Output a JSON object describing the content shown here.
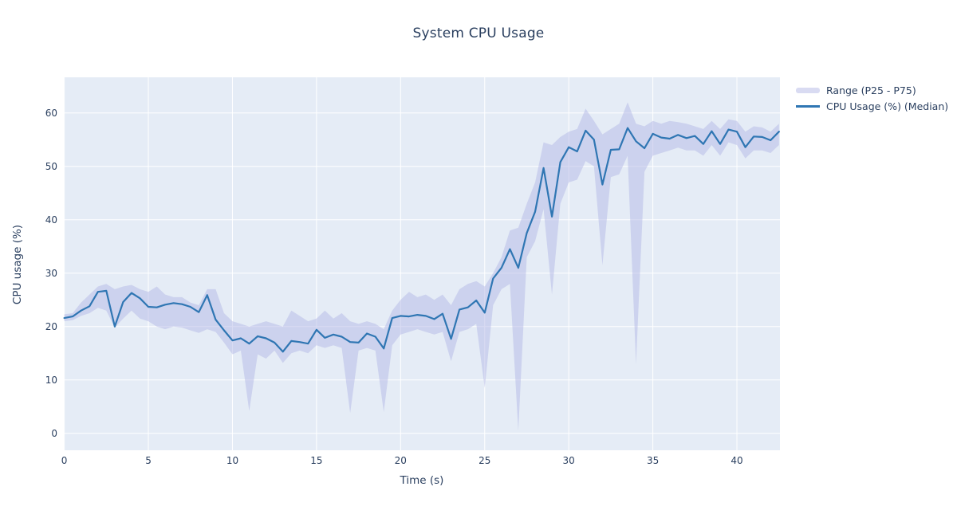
{
  "chart": {
    "title": "System CPU Usage",
    "xlabel": "Time (s)",
    "ylabel": "CPU usage (%)",
    "legend": [
      "Range (P25 - P75)",
      "CPU Usage (%) (Median)"
    ]
  },
  "chart_data": {
    "type": "line",
    "title": "System CPU Usage",
    "xlabel": "Time (s)",
    "ylabel": "CPU usage (%)",
    "legend_position": "top-right",
    "grid": true,
    "xlim": [
      0,
      42.6
    ],
    "ylim": [
      -3.2,
      66.7
    ],
    "xticks": [
      0,
      5,
      10,
      15,
      20,
      25,
      30,
      35,
      40
    ],
    "yticks": [
      0,
      10,
      20,
      30,
      40,
      50,
      60
    ],
    "colors": {
      "plot_background": "#e5ecf6",
      "gridline": "#ffffff",
      "band_fill": "rgba(180,184,230,0.5)",
      "median_line": "#2f76b3",
      "text": "#2a3f5f"
    },
    "x": [
      0,
      0.5,
      1,
      1.5,
      2,
      2.5,
      3,
      3.5,
      4,
      4.5,
      5,
      5.5,
      6,
      6.5,
      7,
      7.5,
      8,
      8.5,
      9,
      9.5,
      10,
      10.5,
      11,
      11.5,
      12,
      12.5,
      13,
      13.5,
      14,
      14.5,
      15,
      15.5,
      16,
      16.5,
      17,
      17.5,
      18,
      18.5,
      19,
      19.5,
      20,
      20.5,
      21,
      21.5,
      22,
      22.5,
      23,
      23.5,
      24,
      24.5,
      25,
      25.5,
      26,
      26.5,
      27,
      27.5,
      28,
      28.5,
      29,
      29.5,
      30,
      30.5,
      31,
      31.5,
      32,
      32.5,
      33,
      33.5,
      34,
      34.5,
      35,
      35.5,
      36,
      36.5,
      37,
      37.5,
      38,
      38.5,
      39,
      39.5,
      40,
      40.5,
      41,
      41.5,
      42,
      42.5
    ],
    "series": [
      {
        "name": "CPU Usage (%) (Median)",
        "values": [
          21.6,
          21.9,
          23.0,
          23.8,
          26.5,
          26.7,
          20.0,
          24.6,
          26.3,
          25.3,
          23.7,
          23.6,
          24.1,
          24.4,
          24.2,
          23.7,
          22.7,
          25.9,
          21.3,
          19.3,
          17.4,
          17.8,
          16.8,
          18.2,
          17.8,
          17.0,
          15.3,
          17.3,
          17.1,
          16.8,
          19.4,
          17.9,
          18.5,
          18.1,
          17.1,
          17.0,
          18.7,
          18.1,
          15.9,
          21.6,
          22.0,
          21.9,
          22.2,
          22.0,
          21.4,
          22.4,
          17.7,
          23.2,
          23.6,
          24.9,
          22.6,
          29.0,
          31.0,
          34.5,
          31.0,
          37.5,
          41.5,
          49.7,
          40.6,
          50.8,
          53.6,
          52.8,
          56.7,
          55.0,
          46.6,
          53.1,
          53.2,
          57.2,
          54.7,
          53.4,
          56.1,
          55.4,
          55.2,
          55.9,
          55.3,
          55.7,
          54.2,
          56.6,
          54.2,
          56.9,
          56.5,
          53.6,
          55.6,
          55.5,
          54.9,
          56.5
        ]
      },
      {
        "name": "P25",
        "values": [
          21.0,
          21.2,
          22.0,
          22.5,
          23.5,
          23.0,
          19.8,
          21.5,
          23.0,
          21.5,
          21.0,
          20.0,
          19.5,
          20.0,
          19.8,
          19.3,
          18.8,
          19.5,
          19.0,
          17.0,
          14.8,
          15.5,
          4.2,
          14.8,
          14.0,
          15.5,
          13.2,
          15.0,
          15.5,
          15.0,
          16.5,
          16.0,
          16.5,
          16.0,
          3.8,
          15.5,
          16.0,
          15.5,
          4.0,
          16.5,
          18.5,
          19.0,
          19.5,
          19.0,
          18.5,
          19.0,
          13.5,
          19.0,
          19.5,
          20.5,
          8.5,
          24.0,
          27.0,
          28.0,
          0.5,
          33.0,
          36.0,
          42.0,
          26.0,
          43.0,
          47.0,
          47.5,
          51.0,
          50.0,
          31.5,
          48.0,
          48.5,
          52.0,
          13.0,
          49.0,
          52.0,
          52.5,
          53.0,
          53.5,
          53.0,
          53.0,
          52.0,
          54.0,
          52.0,
          54.5,
          54.0,
          51.5,
          53.0,
          53.0,
          52.5,
          54.0
        ]
      },
      {
        "name": "P75",
        "values": [
          22.3,
          22.5,
          24.5,
          26.0,
          27.5,
          28.0,
          27.0,
          27.5,
          27.8,
          27.0,
          26.5,
          27.5,
          26.0,
          25.5,
          25.5,
          24.5,
          24.0,
          27.0,
          27.0,
          22.5,
          21.0,
          20.5,
          20.0,
          20.5,
          21.0,
          20.5,
          20.0,
          23.0,
          22.0,
          21.0,
          21.5,
          23.0,
          21.5,
          22.5,
          21.0,
          20.5,
          21.0,
          20.5,
          19.5,
          23.0,
          25.0,
          26.5,
          25.5,
          26.0,
          25.0,
          26.0,
          24.0,
          27.0,
          28.0,
          28.5,
          27.5,
          30.0,
          33.0,
          38.0,
          38.5,
          43.0,
          47.0,
          54.5,
          54.0,
          55.5,
          56.5,
          57.0,
          60.8,
          58.5,
          56.0,
          57.0,
          58.0,
          62.0,
          58.0,
          57.5,
          58.5,
          58.0,
          58.5,
          58.3,
          58.0,
          57.5,
          57.0,
          58.5,
          57.0,
          58.8,
          58.5,
          56.5,
          57.5,
          57.3,
          56.5,
          58.0
        ]
      }
    ]
  }
}
